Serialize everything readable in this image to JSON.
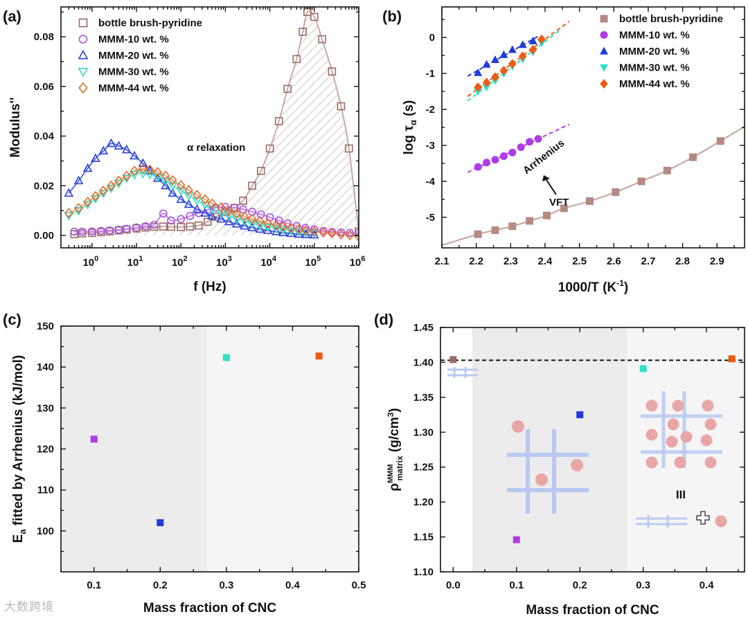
{
  "watermark": "大数跨境",
  "colors": {
    "bottle": "#9a6b64",
    "mmm10": "#a64fe0",
    "mmm20": "#2a40d8",
    "mmm30": "#3ad8c5",
    "mmm44": "#e36a28",
    "bottle_fill": "#b58a84",
    "mmm10_fill": "#b03be8",
    "mmm20_fill": "#1f3bd6",
    "mmm30_fill": "#2fe0c8",
    "mmm44_fill": "#f05a12",
    "fit_line": "#c9a9a3",
    "shade_region": "#ececec",
    "shade_light": "#f5f5f5",
    "grid_blue": "#b8c9f2",
    "circle_pink": "#e9a6a6"
  },
  "chart_data": [
    {
      "panel": "(a)",
      "type": "scatter",
      "xlabel": "f (Hz)",
      "ylabel": "Modulus''",
      "xscale": "log",
      "xlim": [
        0.2,
        1000000
      ],
      "ylim": [
        -0.005,
        0.092
      ],
      "xticks": [
        "10^0",
        "10^1",
        "10^2",
        "10^3",
        "10^4",
        "10^5",
        "10^6"
      ],
      "yticks": [
        "0.00",
        "0.02",
        "0.04",
        "0.06",
        "0.08"
      ],
      "legend": [
        "bottle brush-pyridine",
        "MMM-10 wt. %",
        "MMM-20 wt. %",
        "MMM-30 wt. %",
        "MMM-44 wt. %"
      ],
      "annotation": "α relaxation",
      "series": [
        {
          "name": "bottle brush-pyridine",
          "marker": "open-square",
          "color_key": "bottle",
          "x": [
            0.4,
            0.6,
            1,
            1.6,
            2.5,
            4,
            6,
            10,
            16,
            25,
            40,
            60,
            100,
            160,
            250,
            400,
            600,
            1000,
            1600,
            2500,
            4000,
            6300,
            10000,
            16000,
            25000,
            40000,
            55000,
            70000,
            100000,
            150000,
            250000,
            400000,
            600000,
            1000000
          ],
          "y": [
            0.0005,
            0.0008,
            0.001,
            0.0013,
            0.0016,
            0.002,
            0.0024,
            0.0028,
            0.0032,
            0.0035,
            0.0036,
            0.0035,
            0.0034,
            0.0036,
            0.004,
            0.0055,
            0.0075,
            0.0095,
            0.011,
            0.014,
            0.02,
            0.026,
            0.035,
            0.046,
            0.059,
            0.071,
            0.082,
            0.09,
            0.088,
            0.079,
            0.066,
            0.052,
            0.035,
            0.0015
          ]
        },
        {
          "name": "MMM-10 wt. %",
          "marker": "open-circle",
          "color_key": "mmm10",
          "x": [
            0.4,
            0.6,
            1,
            1.6,
            2.5,
            4,
            6,
            10,
            16,
            25,
            40,
            60,
            100,
            160,
            250,
            400,
            600,
            1000,
            1600,
            2500,
            4000,
            6300,
            10000,
            16000,
            25000,
            40000,
            63000,
            100000,
            160000,
            250000,
            400000,
            630000,
            1000000
          ],
          "y": [
            0.0015,
            0.0015,
            0.0016,
            0.0018,
            0.002,
            0.0023,
            0.0027,
            0.0032,
            0.0037,
            0.0043,
            0.0088,
            0.006,
            0.0066,
            0.0078,
            0.009,
            0.0103,
            0.0112,
            0.0115,
            0.0112,
            0.0105,
            0.0095,
            0.0085,
            0.0073,
            0.006,
            0.0048,
            0.0038,
            0.003,
            0.0024,
            0.0018,
            0.0014,
            0.0012,
            0.001,
            0.0009
          ]
        },
        {
          "name": "MMM-20 wt. %",
          "marker": "open-triangle-up",
          "color_key": "mmm20",
          "x": [
            0.3,
            0.5,
            0.8,
            1.2,
            1.8,
            2.7,
            4,
            6,
            9,
            14,
            20,
            30,
            45,
            65,
            100,
            150,
            230,
            350,
            500,
            800,
            1200,
            1800,
            2700,
            4000,
            6000,
            9000,
            14000,
            20000,
            30000,
            45000,
            65000,
            100000
          ],
          "y": [
            0.017,
            0.022,
            0.027,
            0.031,
            0.034,
            0.037,
            0.036,
            0.0345,
            0.032,
            0.029,
            0.026,
            0.023,
            0.02,
            0.017,
            0.0145,
            0.0125,
            0.0105,
            0.009,
            0.0078,
            0.0066,
            0.0055,
            0.0046,
            0.0038,
            0.0031,
            0.0025,
            0.002,
            0.0015,
            0.0011,
            0.0008,
            0.0005,
            0.0003,
            0.0002
          ]
        },
        {
          "name": "MMM-30 wt. %",
          "marker": "open-triangle-down",
          "color_key": "mmm30",
          "x": [
            0.3,
            0.5,
            0.8,
            1.2,
            1.8,
            2.7,
            4,
            6,
            9,
            14,
            20,
            30,
            45,
            65,
            100,
            150,
            230,
            350,
            500,
            800,
            1200,
            1800,
            2700,
            4000,
            6000,
            9000,
            14000,
            20000,
            30000,
            45000,
            65000,
            100000
          ],
          "y": [
            0.008,
            0.01,
            0.0125,
            0.0148,
            0.017,
            0.019,
            0.021,
            0.023,
            0.0245,
            0.025,
            0.0245,
            0.0235,
            0.022,
            0.02,
            0.018,
            0.016,
            0.014,
            0.0122,
            0.0105,
            0.009,
            0.0077,
            0.0066,
            0.0056,
            0.0047,
            0.004,
            0.0033,
            0.0027,
            0.0022,
            0.0018,
            0.0014,
            0.0011,
            0.0009
          ]
        },
        {
          "name": "MMM-44 wt. %",
          "marker": "open-diamond",
          "color_key": "mmm44",
          "x": [
            0.3,
            0.5,
            0.8,
            1.2,
            1.8,
            2.7,
            4,
            6,
            9,
            14,
            20,
            30,
            45,
            65,
            100,
            150,
            230,
            350,
            500,
            800,
            1200,
            1800,
            2700,
            4000,
            6000,
            9000,
            14000,
            20000,
            30000,
            45000,
            65000,
            100000,
            160000,
            250000,
            400000,
            630000,
            1000000
          ],
          "y": [
            0.009,
            0.011,
            0.0135,
            0.0158,
            0.018,
            0.02,
            0.022,
            0.024,
            0.026,
            0.0268,
            0.0265,
            0.0255,
            0.024,
            0.0222,
            0.0202,
            0.0182,
            0.0163,
            0.0145,
            0.0128,
            0.0113,
            0.0099,
            0.0087,
            0.0076,
            0.0066,
            0.0057,
            0.0049,
            0.0042,
            0.0036,
            0.003,
            0.0025,
            0.002,
            0.0016,
            0.0012,
            0.0008,
            0.0004,
            0.0001,
            -0.0004
          ]
        }
      ]
    },
    {
      "panel": "(b)",
      "type": "scatter",
      "xlabel": "1000/T (K⁻¹)",
      "ylabel": "log τα (s)",
      "xlim": [
        2.1,
        2.98
      ],
      "ylim": [
        -5.85,
        0.85
      ],
      "xticks": [
        "2.1",
        "2.2",
        "2.3",
        "2.4",
        "2.5",
        "2.6",
        "2.7",
        "2.8",
        "2.9"
      ],
      "yticks": [
        "0",
        "-1",
        "-2",
        "-3",
        "-4",
        "-5"
      ],
      "legend": [
        "bottle brush-pyridine",
        "MMM-10 wt. %",
        "MMM-20 wt. %",
        "MMM-30 wt. %",
        "MMM-44 wt. %"
      ],
      "annotations": [
        "Arrhenius",
        "VFT"
      ],
      "series": [
        {
          "name": "bottle brush-pyridine",
          "marker": "filled-square",
          "color_key": "bottle_fill",
          "x": [
            2.205,
            2.255,
            2.305,
            2.355,
            2.405,
            2.455,
            2.53,
            2.605,
            2.68,
            2.755,
            2.83,
            2.91
          ],
          "y": [
            -5.47,
            -5.36,
            -5.25,
            -5.1,
            -4.95,
            -4.75,
            -4.55,
            -4.3,
            -4.0,
            -3.7,
            -3.33,
            -2.88
          ]
        },
        {
          "name": "MMM-10 wt. %",
          "marker": "filled-circle",
          "color_key": "mmm10_fill",
          "x": [
            2.205,
            2.23,
            2.255,
            2.28,
            2.305,
            2.33,
            2.355,
            2.38
          ],
          "y": [
            -3.6,
            -3.48,
            -3.4,
            -3.3,
            -3.2,
            -3.05,
            -2.9,
            -2.82
          ]
        },
        {
          "name": "MMM-20 wt. %",
          "marker": "filled-triangle-up",
          "color_key": "mmm20_fill",
          "x": [
            2.205,
            2.23,
            2.255,
            2.28,
            2.305,
            2.335,
            2.365
          ],
          "y": [
            -0.98,
            -0.75,
            -0.62,
            -0.48,
            -0.34,
            -0.2,
            -0.1
          ]
        },
        {
          "name": "MMM-30 wt. %",
          "marker": "filled-triangle-down",
          "color_key": "mmm30_fill",
          "x": [
            2.205,
            2.23,
            2.255,
            2.28,
            2.305,
            2.335,
            2.365,
            2.39
          ],
          "y": [
            -1.5,
            -1.38,
            -1.2,
            -1.0,
            -0.8,
            -0.6,
            -0.4,
            -0.15
          ]
        },
        {
          "name": "MMM-44 wt. %",
          "marker": "filled-diamond",
          "color_key": "mmm44_fill",
          "x": [
            2.205,
            2.23,
            2.255,
            2.28,
            2.305,
            2.335,
            2.365,
            2.39
          ],
          "y": [
            -1.38,
            -1.25,
            -1.1,
            -0.92,
            -0.73,
            -0.52,
            -0.34,
            -0.05
          ]
        }
      ]
    },
    {
      "panel": "(c)",
      "type": "scatter",
      "xlabel": "Mass fraction of CNC",
      "ylabel": "Ea fitted  by Arrhenius (kJ/mol)",
      "xlim": [
        0.05,
        0.5
      ],
      "ylim": [
        90,
        150
      ],
      "xticks": [
        "0.1",
        "0.2",
        "0.3",
        "0.4",
        "0.5"
      ],
      "yticks": [
        "100",
        "110",
        "120",
        "130",
        "140",
        "150"
      ],
      "points": [
        {
          "x": 0.1,
          "y": 122.4,
          "color_key": "mmm10_fill"
        },
        {
          "x": 0.2,
          "y": 102.0,
          "color_key": "mmm20_fill"
        },
        {
          "x": 0.3,
          "y": 142.3,
          "color_key": "mmm30_fill"
        },
        {
          "x": 0.44,
          "y": 142.7,
          "color_key": "mmm44_fill"
        }
      ]
    },
    {
      "panel": "(d)",
      "type": "scatter",
      "xlabel": "Mass fraction of CNC",
      "ylabel": "ρ matrix MMM (g/cm³)",
      "xlim": [
        -0.02,
        0.46
      ],
      "ylim": [
        1.1,
        1.45
      ],
      "xticks": [
        "0.0",
        "0.1",
        "0.2",
        "0.3",
        "0.4"
      ],
      "yticks": [
        "1.10",
        "1.15",
        "1.20",
        "1.25",
        "1.30",
        "1.35",
        "1.40",
        "1.45"
      ],
      "reference_line_y": 1.403,
      "region_labels": [
        "III"
      ],
      "points": [
        {
          "x": 0.0,
          "y": 1.404,
          "color_key": "bottle"
        },
        {
          "x": 0.1,
          "y": 1.146,
          "color_key": "mmm10_fill"
        },
        {
          "x": 0.2,
          "y": 1.325,
          "color_key": "mmm20_fill"
        },
        {
          "x": 0.3,
          "y": 1.391,
          "color_key": "mmm30_fill"
        },
        {
          "x": 0.44,
          "y": 1.405,
          "color_key": "mmm44_fill"
        }
      ]
    }
  ]
}
